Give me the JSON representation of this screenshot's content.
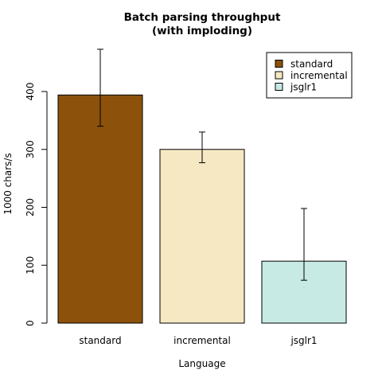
{
  "chart_data": {
    "type": "bar",
    "title_lines": [
      "Batch parsing throughput",
      "(with imploding)"
    ],
    "xlabel": "Language",
    "ylabel": "1000 chars/s",
    "categories": [
      "standard",
      "incremental",
      "jsglr1"
    ],
    "values": [
      394,
      300,
      107
    ],
    "error_low": [
      340,
      277,
      74
    ],
    "error_high": [
      473,
      330,
      198
    ],
    "colors": [
      "#8c510a",
      "#f6e8c3",
      "#c7eae5"
    ],
    "ylim": [
      0,
      480
    ],
    "yticks": [
      0,
      100,
      200,
      300,
      400
    ],
    "grid": false,
    "legend": {
      "position": "top-right",
      "entries": [
        "standard",
        "incremental",
        "jsglr1"
      ]
    }
  }
}
